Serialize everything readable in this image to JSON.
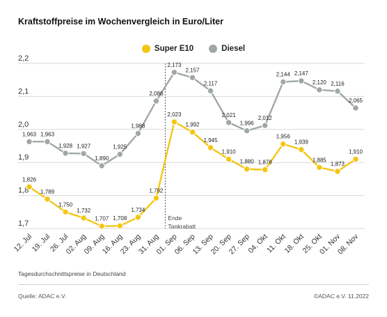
{
  "title": "Kraftstoffpreise im Wochenvergleich in Euro/Liter",
  "caption": "Tagesdurchschnittspreise in Deutschland",
  "source": "Quelle: ADAC e.V.",
  "copyright": "©ADAC e.V.  11.2022",
  "colors": {
    "super_e10": "#f3c614",
    "diesel": "#a0a8a6",
    "grid": "#d9d9d9",
    "text": "#222222"
  },
  "chart_data": {
    "type": "line",
    "title": "Kraftstoffpreise im Wochenvergleich in Euro/Liter",
    "xlabel": "",
    "ylabel": "",
    "ylim": [
      1.7,
      2.2
    ],
    "yticks": [
      "1,7",
      "1,8",
      "1,9",
      "2,0",
      "2,1",
      "2,2"
    ],
    "ytick_values": [
      1.7,
      1.8,
      1.9,
      2.0,
      2.1,
      2.2
    ],
    "grid": true,
    "legend_position": "top-center",
    "categories": [
      "12. Jul",
      "19. Jul",
      "26. Jul",
      "02. Aug",
      "09. Aug",
      "16. Aug",
      "23. Aug",
      "31. Aug",
      "01. Sep",
      "06. Sep",
      "13. Sep",
      "20. Sep",
      "27. Sep",
      "04. Okt",
      "11. Okt",
      "18. Okt",
      "25. Okt",
      "01. Nov",
      "08. Nov"
    ],
    "series": [
      {
        "name": "Super E10",
        "values": [
          1.826,
          1.789,
          1.75,
          1.732,
          1.707,
          1.708,
          1.734,
          1.792,
          2.023,
          1.992,
          1.945,
          1.91,
          1.88,
          1.878,
          1.956,
          1.939,
          1.885,
          1.873,
          1.91
        ],
        "labels": [
          "1,826",
          "1,789",
          "1,750",
          "1,732",
          "1,707",
          "1,708",
          "1,734",
          "1,792",
          "2,023",
          "1,992",
          "1,945",
          "1,910",
          "1,880",
          "1,878",
          "1,956",
          "1,939",
          "1,885",
          "1,873",
          "1,910"
        ]
      },
      {
        "name": "Diesel",
        "values": [
          1.963,
          1.963,
          1.928,
          1.927,
          1.89,
          1.925,
          1.988,
          2.086,
          2.173,
          2.157,
          2.117,
          2.021,
          1.996,
          2.012,
          2.144,
          2.147,
          2.12,
          2.116,
          2.065
        ],
        "labels": [
          "1,963",
          "1,963",
          "1,928",
          "1,927",
          "1,890",
          "1,925",
          "1,988",
          "2,086",
          "2,173",
          "2,157",
          "2,117",
          "2,021",
          "1,996",
          "2,012",
          "2,144",
          "2,147",
          "2,120",
          "2,116",
          "2,065"
        ]
      }
    ],
    "annotations": [
      {
        "text_line1": "Ende",
        "text_line2": "Tankrabatt",
        "at_category": "31. Aug"
      }
    ]
  }
}
